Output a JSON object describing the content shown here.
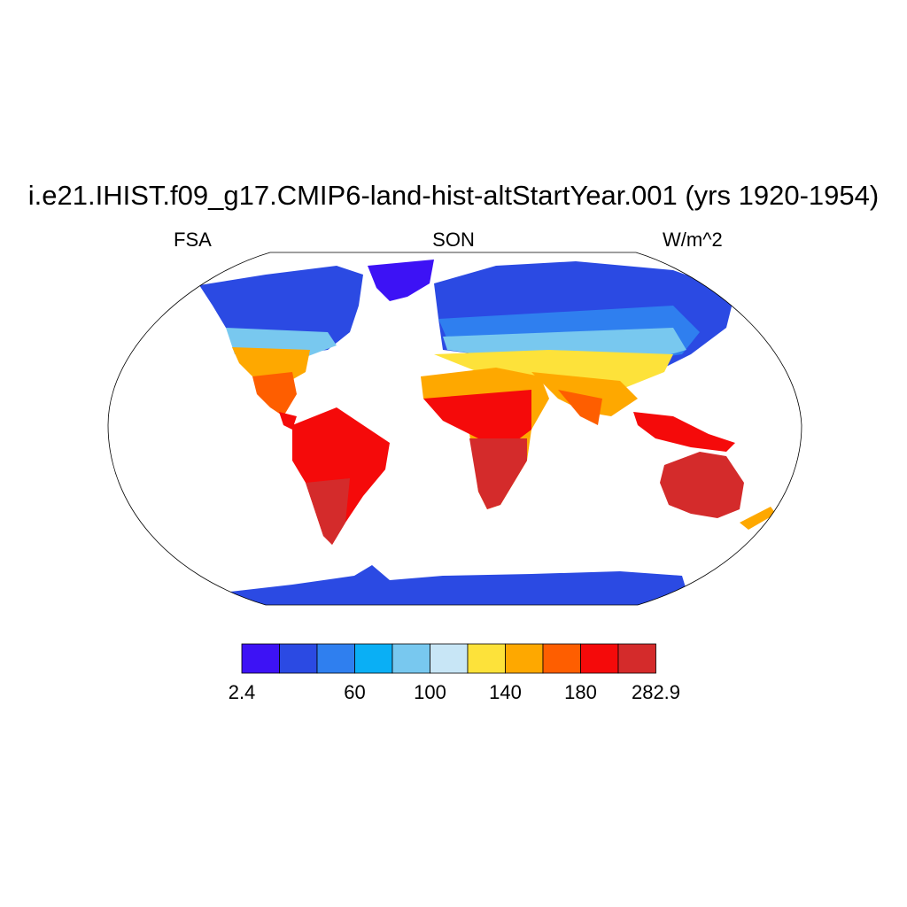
{
  "title": "i.e21.IHIST.f09_g17.CMIP6-land-hist-altStartYear.001 (yrs 1920-1954)",
  "left_label": "FSA",
  "center_label": "SON",
  "right_label": "W/m^2",
  "colorbar": {
    "colors": [
      "#3d12f5",
      "#2b4ae3",
      "#2f7fef",
      "#0aaff5",
      "#78c8ef",
      "#c8e6f6",
      "#fde23a",
      "#fea800",
      "#fe5e00",
      "#f50a0a",
      "#d42b2b"
    ],
    "tick_labels": [
      {
        "text": "2.4",
        "boundary": 0
      },
      {
        "text": "60",
        "boundary": 3
      },
      {
        "text": "100",
        "boundary": 5
      },
      {
        "text": "140",
        "boundary": 7
      },
      {
        "text": "180",
        "boundary": 9
      },
      {
        "text": "282.9",
        "boundary": 11
      }
    ]
  }
}
